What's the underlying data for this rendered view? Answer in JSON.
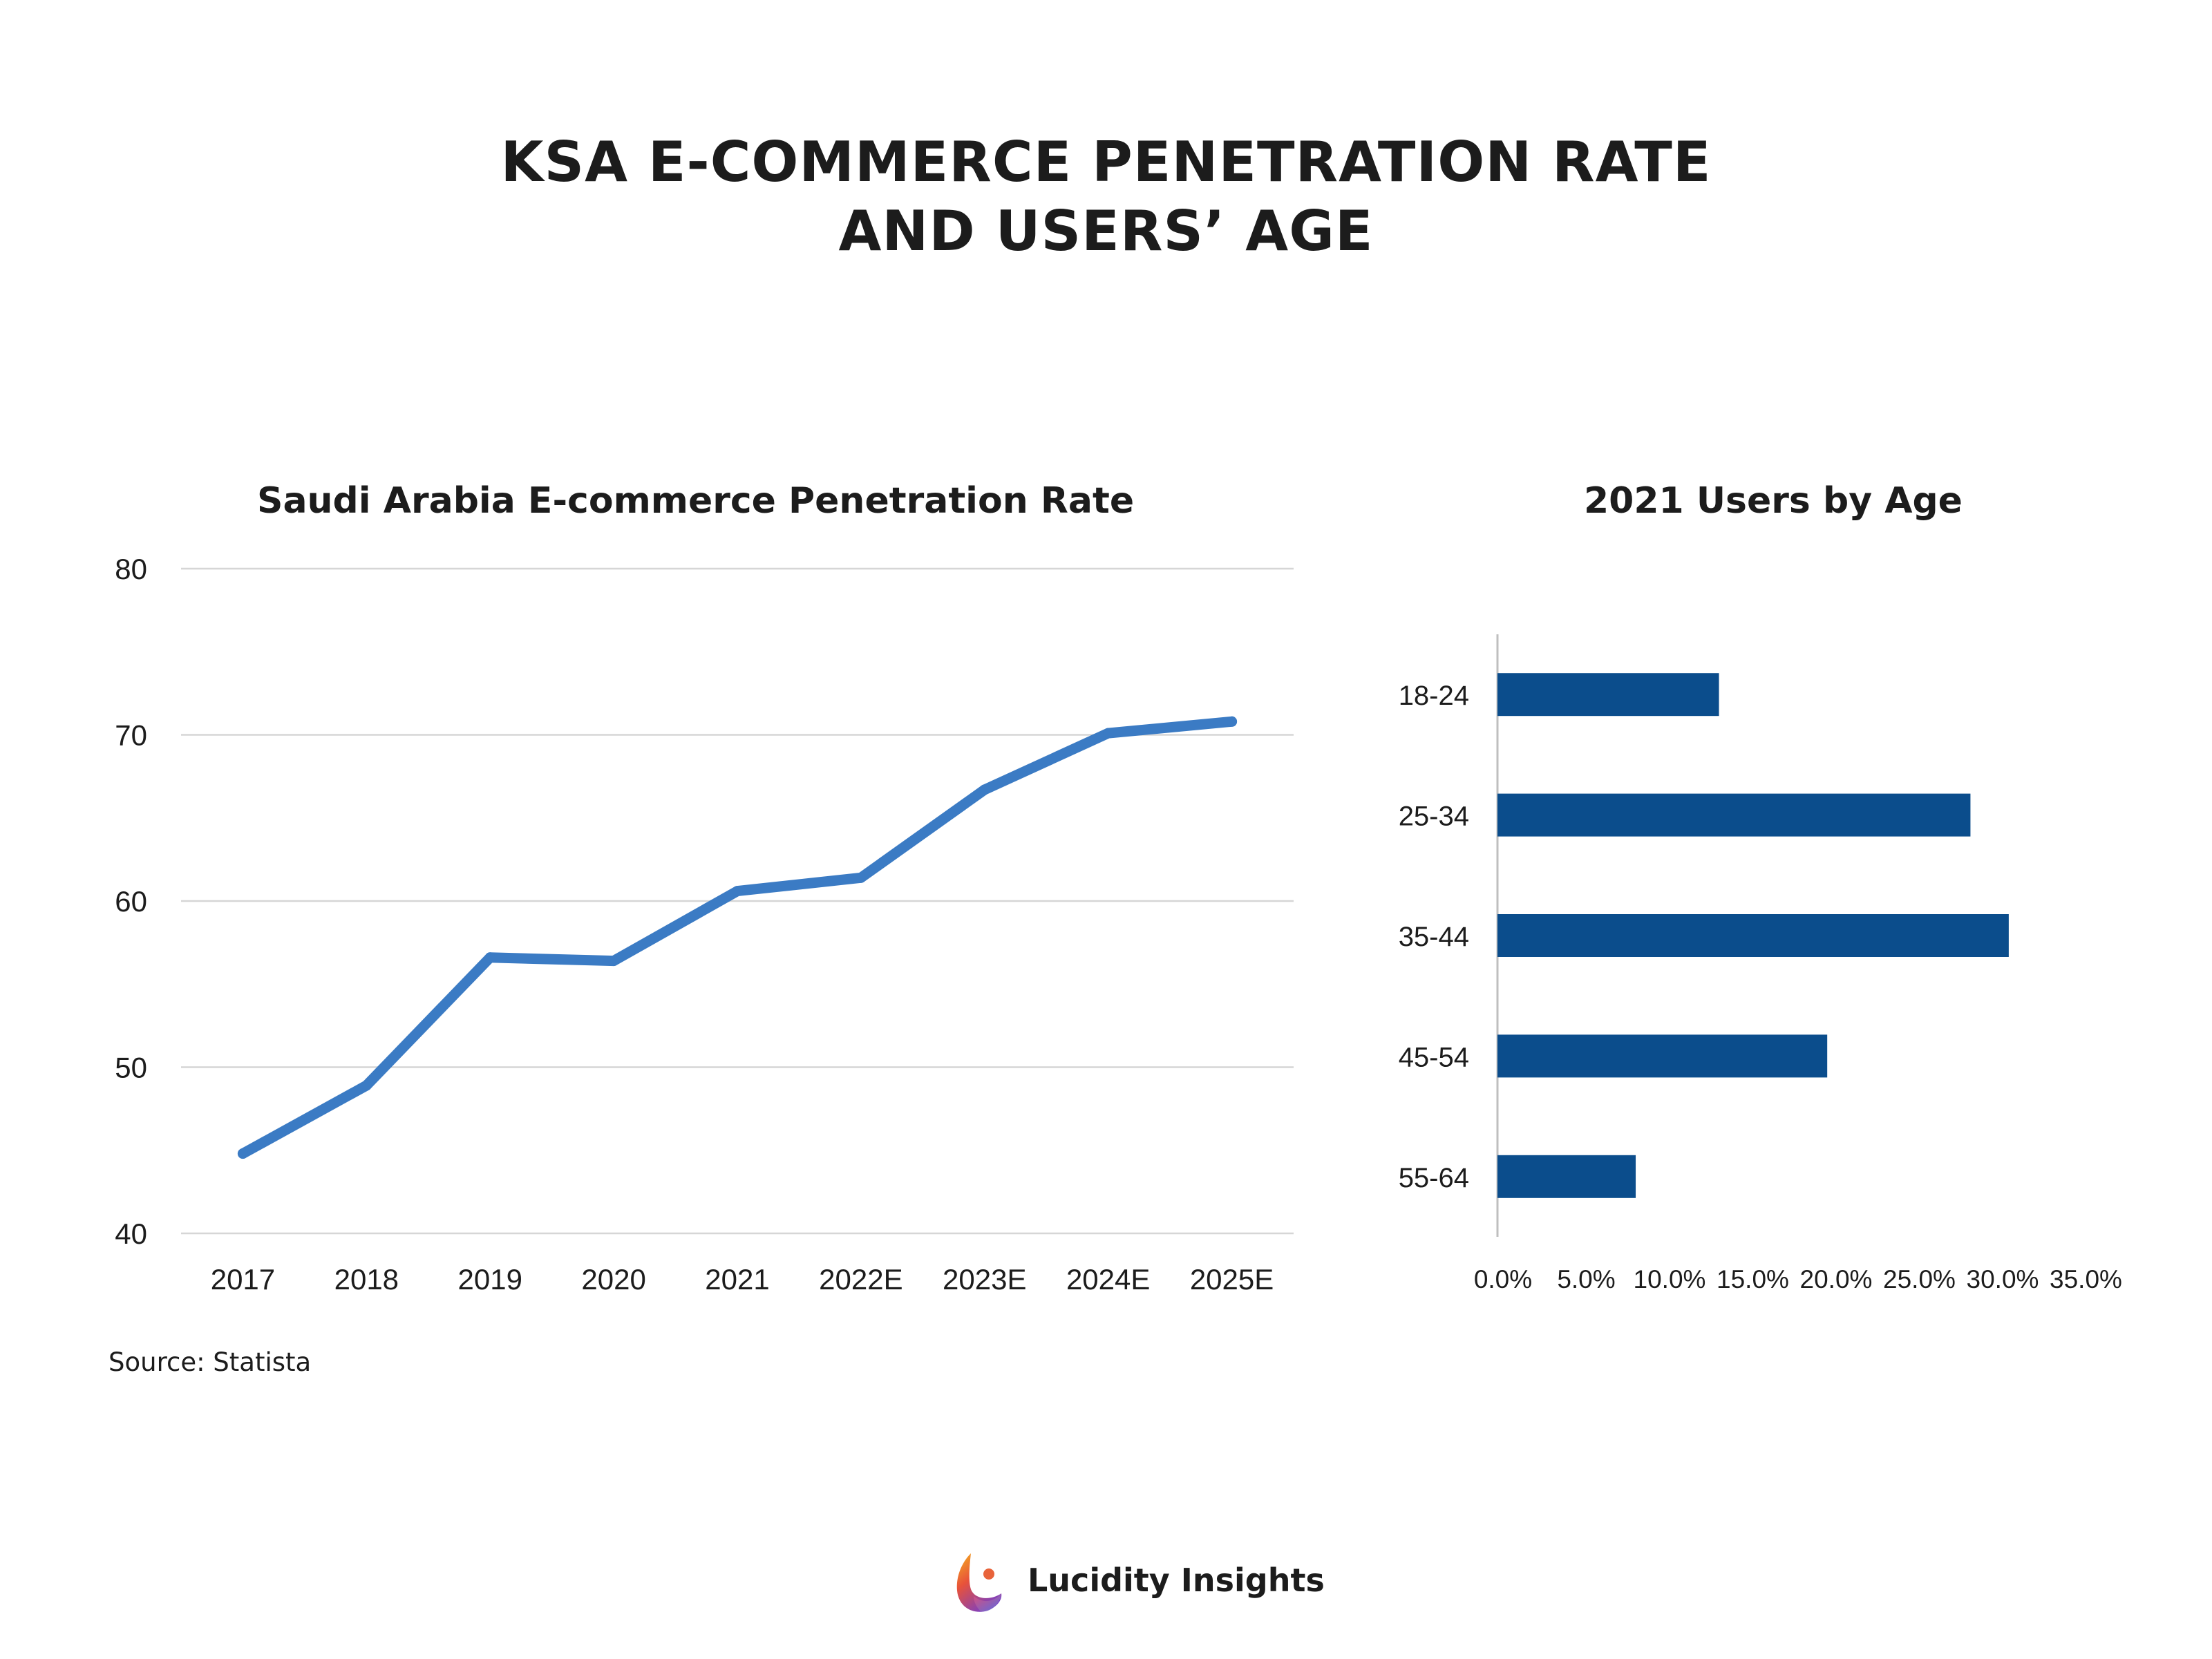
{
  "header": {
    "title_line1": "KSA E-COMMERCE PENETRATION RATE",
    "title_line2": "AND USERS’ AGE"
  },
  "footer": {
    "source": "Source: Statista",
    "brand_name": "Lucidity Insights"
  },
  "colors": {
    "line": "#3b7bc4",
    "bar": "#0b4d8c",
    "grid": "#d6d6d6",
    "axis": "#bfbfbf",
    "text": "#1c1c1c"
  },
  "chart_data": [
    {
      "type": "line",
      "title": "Saudi Arabia E-commerce Penetration Rate",
      "xlabel": "",
      "ylabel": "",
      "categories": [
        "2017",
        "2018",
        "2019",
        "2020",
        "2021",
        "2022E",
        "2023E",
        "2024E",
        "2025E"
      ],
      "series": [
        {
          "values": [
            44.8,
            48.9,
            56.6,
            56.4,
            60.6,
            61.4,
            66.7,
            70.1,
            70.8
          ]
        }
      ],
      "ylim": [
        40,
        80
      ],
      "yticks": [
        "40",
        "50",
        "60",
        "70",
        "80"
      ],
      "grid": true,
      "legend": "none"
    },
    {
      "type": "bar",
      "orientation": "horizontal",
      "title": "2021 Users by Age",
      "xlabel": "",
      "ylabel": "",
      "categories": [
        "18-24",
        "25-34",
        "35-44",
        "45-54",
        "55-64"
      ],
      "values": [
        13.3,
        28.4,
        30.7,
        19.8,
        8.3
      ],
      "xlim": [
        0,
        35
      ],
      "xticks": [
        "0.0%",
        "5.0%",
        "10.0%",
        "15.0%",
        "20.0%",
        "25.0%",
        "30.0%",
        "35.0%"
      ],
      "grid": false,
      "legend": "none"
    }
  ]
}
